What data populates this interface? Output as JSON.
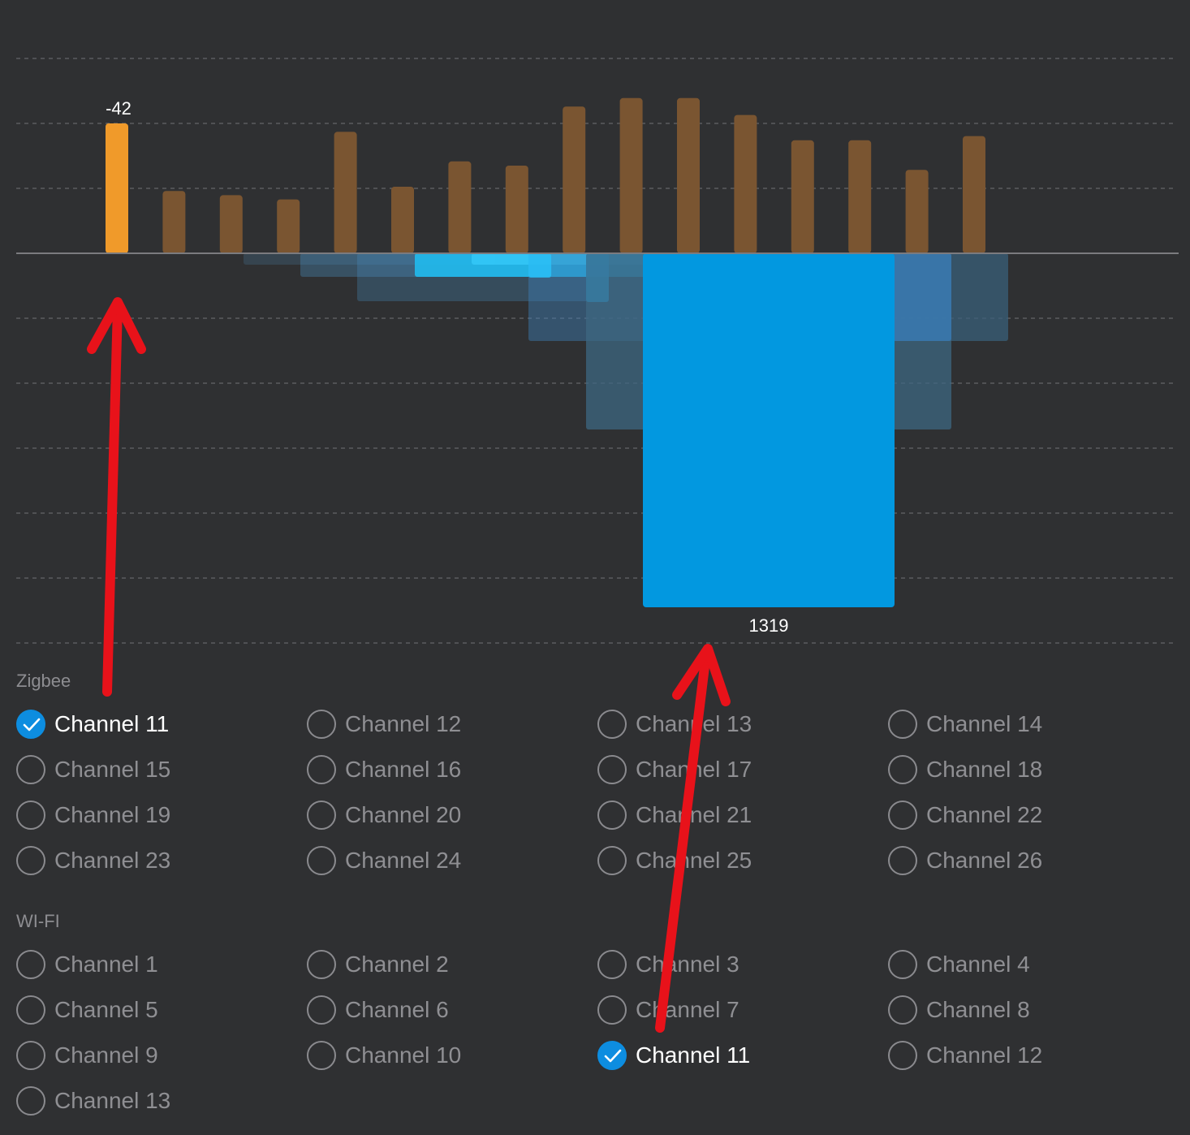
{
  "colors": {
    "background": "#2f3032",
    "zigbee_bar": "#7a5531",
    "zigbee_bar_selected": "#f09a2a",
    "wifi_bar": "#1aa6f0",
    "wifi_bar_selected": "#0298e0",
    "checkbox_checked": "#0d8de0",
    "annotation_arrow": "#e8121a"
  },
  "chart_data": {
    "type": "bar",
    "upper_series": {
      "selected_label": "-42",
      "values": [
        -42,
        -58,
        -59,
        -60,
        -44,
        -57,
        -51,
        -52,
        -38,
        -36,
        -36,
        -40,
        -46,
        -46,
        -53,
        -45
      ]
    },
    "lower_series": {
      "selected_label": "1319"
    }
  },
  "zigbee": {
    "title": "Zigbee",
    "channels": [
      {
        "label": "Channel 11",
        "checked": true
      },
      {
        "label": "Channel 12",
        "checked": false
      },
      {
        "label": "Channel 13",
        "checked": false
      },
      {
        "label": "Channel 14",
        "checked": false
      },
      {
        "label": "Channel 15",
        "checked": false
      },
      {
        "label": "Channel 16",
        "checked": false
      },
      {
        "label": "Channel 17",
        "checked": false
      },
      {
        "label": "Channel 18",
        "checked": false
      },
      {
        "label": "Channel 19",
        "checked": false
      },
      {
        "label": "Channel 20",
        "checked": false
      },
      {
        "label": "Channel 21",
        "checked": false
      },
      {
        "label": "Channel 22",
        "checked": false
      },
      {
        "label": "Channel 23",
        "checked": false
      },
      {
        "label": "Channel 24",
        "checked": false
      },
      {
        "label": "Channel 25",
        "checked": false
      },
      {
        "label": "Channel 26",
        "checked": false
      }
    ]
  },
  "wifi": {
    "title": "WI-FI",
    "channels": [
      {
        "label": "Channel 1",
        "checked": false
      },
      {
        "label": "Channel 2",
        "checked": false
      },
      {
        "label": "Channel 3",
        "checked": false
      },
      {
        "label": "Channel 4",
        "checked": false
      },
      {
        "label": "Channel 5",
        "checked": false
      },
      {
        "label": "Channel 6",
        "checked": false
      },
      {
        "label": "Channel 7",
        "checked": false
      },
      {
        "label": "Channel 8",
        "checked": false
      },
      {
        "label": "Channel 9",
        "checked": false
      },
      {
        "label": "Channel 10",
        "checked": false
      },
      {
        "label": "Channel 11",
        "checked": true
      },
      {
        "label": "Channel 12",
        "checked": false
      },
      {
        "label": "Channel 13",
        "checked": false
      }
    ]
  }
}
